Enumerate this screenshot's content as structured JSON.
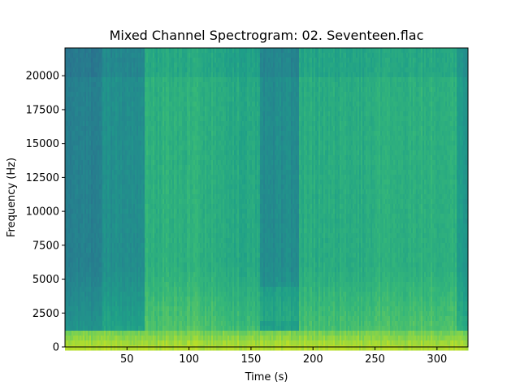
{
  "chart_data": {
    "type": "heatmap",
    "title": "Mixed Channel Spectrogram: 02. Seventeen.flac",
    "xlabel": "Time (s)",
    "ylabel": "Frequency (Hz)",
    "xlim": [
      0,
      325
    ],
    "ylim": [
      0,
      22050
    ],
    "xticks": [
      50,
      100,
      150,
      200,
      250,
      300
    ],
    "yticks": [
      0,
      2500,
      5000,
      7500,
      10000,
      12500,
      15000,
      17500,
      20000
    ],
    "grid": false,
    "legend": "none",
    "colormap": [
      "#2b6e8e",
      "#24878e",
      "#1f9f88",
      "#35b779",
      "#6ccd5a",
      "#b5de2b",
      "#dde318"
    ],
    "sections": [
      {
        "x": [
          0,
          30
        ],
        "intensity": 0.12
      },
      {
        "x": [
          30,
          63
        ],
        "intensity": 0.22
      },
      {
        "x": [
          63,
          127
        ],
        "intensity": 0.45
      },
      {
        "x": [
          127,
          157
        ],
        "intensity": 0.4
      },
      {
        "x": [
          157,
          188
        ],
        "intensity": 0.2
      },
      {
        "x": [
          188,
          250
        ],
        "intensity": 0.42
      },
      {
        "x": [
          250,
          315
        ],
        "intensity": 0.45
      },
      {
        "x": [
          315,
          325
        ],
        "intensity": 0.3
      }
    ],
    "low_frequency_band": {
      "y": [
        0,
        1500
      ],
      "intensity": 0.85
    }
  }
}
